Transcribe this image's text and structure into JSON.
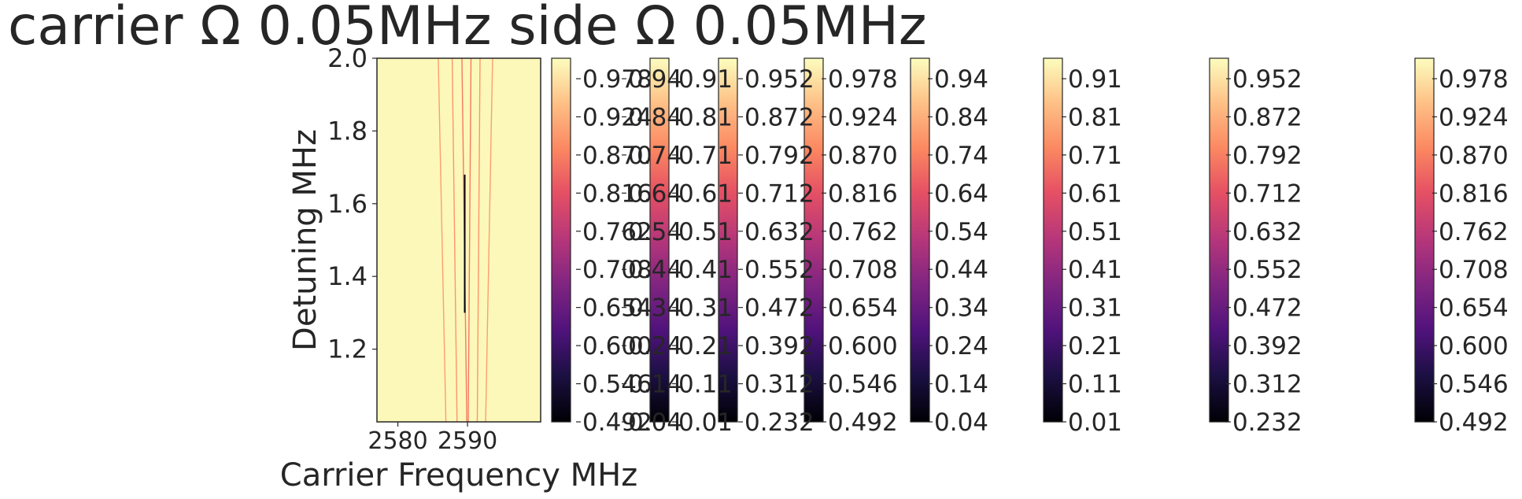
{
  "chart_data": {
    "type": "heatmap",
    "title": "carrier Ω 0.05MHz side Ω 0.05MHz",
    "xlabel": "Carrier Frequency MHz",
    "ylabel": "Detuning MHz",
    "xlim": [
      2577,
      2600.5
    ],
    "ylim": [
      1.0,
      2.0
    ],
    "xticks": [
      "2580",
      "2590"
    ],
    "xtick_values": [
      2580,
      2590
    ],
    "yticks": [
      "1.2",
      "1.4",
      "1.6",
      "1.8",
      "2.0"
    ],
    "ytick_values": [
      1.2,
      1.4,
      1.6,
      1.8,
      2.0
    ],
    "colormap": "magma",
    "background_value": 0.99,
    "lines": [
      {
        "x_top": 2585.8,
        "x_bottom": 2586.9,
        "value": 0.8
      },
      {
        "x_top": 2587.8,
        "x_bottom": 2588.5,
        "value": 0.78
      },
      {
        "x_top": 2589.2,
        "x_bottom": 2589.9,
        "value": 0.72
      },
      {
        "x_top": 2590.5,
        "x_bottom": 2590.1,
        "value": 0.72
      },
      {
        "x_top": 2591.8,
        "x_bottom": 2591.4,
        "value": 0.78
      },
      {
        "x_top": 2593.6,
        "x_bottom": 2592.6,
        "value": 0.8
      }
    ],
    "dark_spot": {
      "x": 2589.6,
      "y_from": 1.3,
      "y_to": 1.68
    },
    "colorbars": [
      {
        "name": "cb1",
        "ticks": [
          "0.978",
          "0.924",
          "0.870",
          "0.816",
          "0.762",
          "0.708",
          "0.654",
          "0.600",
          "0.546",
          "0.492"
        ]
      },
      {
        "name": "cb2",
        "ticks": [
          "0.94",
          "0.84",
          "0.74",
          "0.64",
          "0.54",
          "0.44",
          "0.34",
          "0.24",
          "0.14",
          "0.04"
        ]
      },
      {
        "name": "cb3",
        "ticks": [
          "0.91",
          "0.81",
          "0.71",
          "0.61",
          "0.51",
          "0.41",
          "0.31",
          "0.21",
          "0.11",
          "0.01"
        ]
      },
      {
        "name": "cb4",
        "ticks": [
          "0.952",
          "0.872",
          "0.792",
          "0.712",
          "0.632",
          "0.552",
          "0.472",
          "0.392",
          "0.312",
          "0.232"
        ]
      },
      {
        "name": "cb5",
        "ticks": [
          "0.978",
          "0.924",
          "0.870",
          "0.816",
          "0.762",
          "0.708",
          "0.654",
          "0.600",
          "0.546",
          "0.492"
        ]
      },
      {
        "name": "cb6",
        "ticks": [
          "0.94",
          "0.84",
          "0.74",
          "0.64",
          "0.54",
          "0.44",
          "0.34",
          "0.24",
          "0.14",
          "0.04"
        ]
      },
      {
        "name": "cb7",
        "ticks": [
          "0.91",
          "0.81",
          "0.71",
          "0.61",
          "0.51",
          "0.41",
          "0.31",
          "0.21",
          "0.11",
          "0.01"
        ]
      },
      {
        "name": "cb8",
        "ticks": [
          "0.952",
          "0.872",
          "0.792",
          "0.712",
          "0.632",
          "0.552",
          "0.472",
          "0.392",
          "0.312",
          "0.232"
        ]
      },
      {
        "name": "cb9",
        "ticks": [
          "0.978",
          "0.924",
          "0.870",
          "0.816",
          "0.762",
          "0.708",
          "0.654",
          "0.600",
          "0.546",
          "0.492"
        ]
      }
    ]
  }
}
